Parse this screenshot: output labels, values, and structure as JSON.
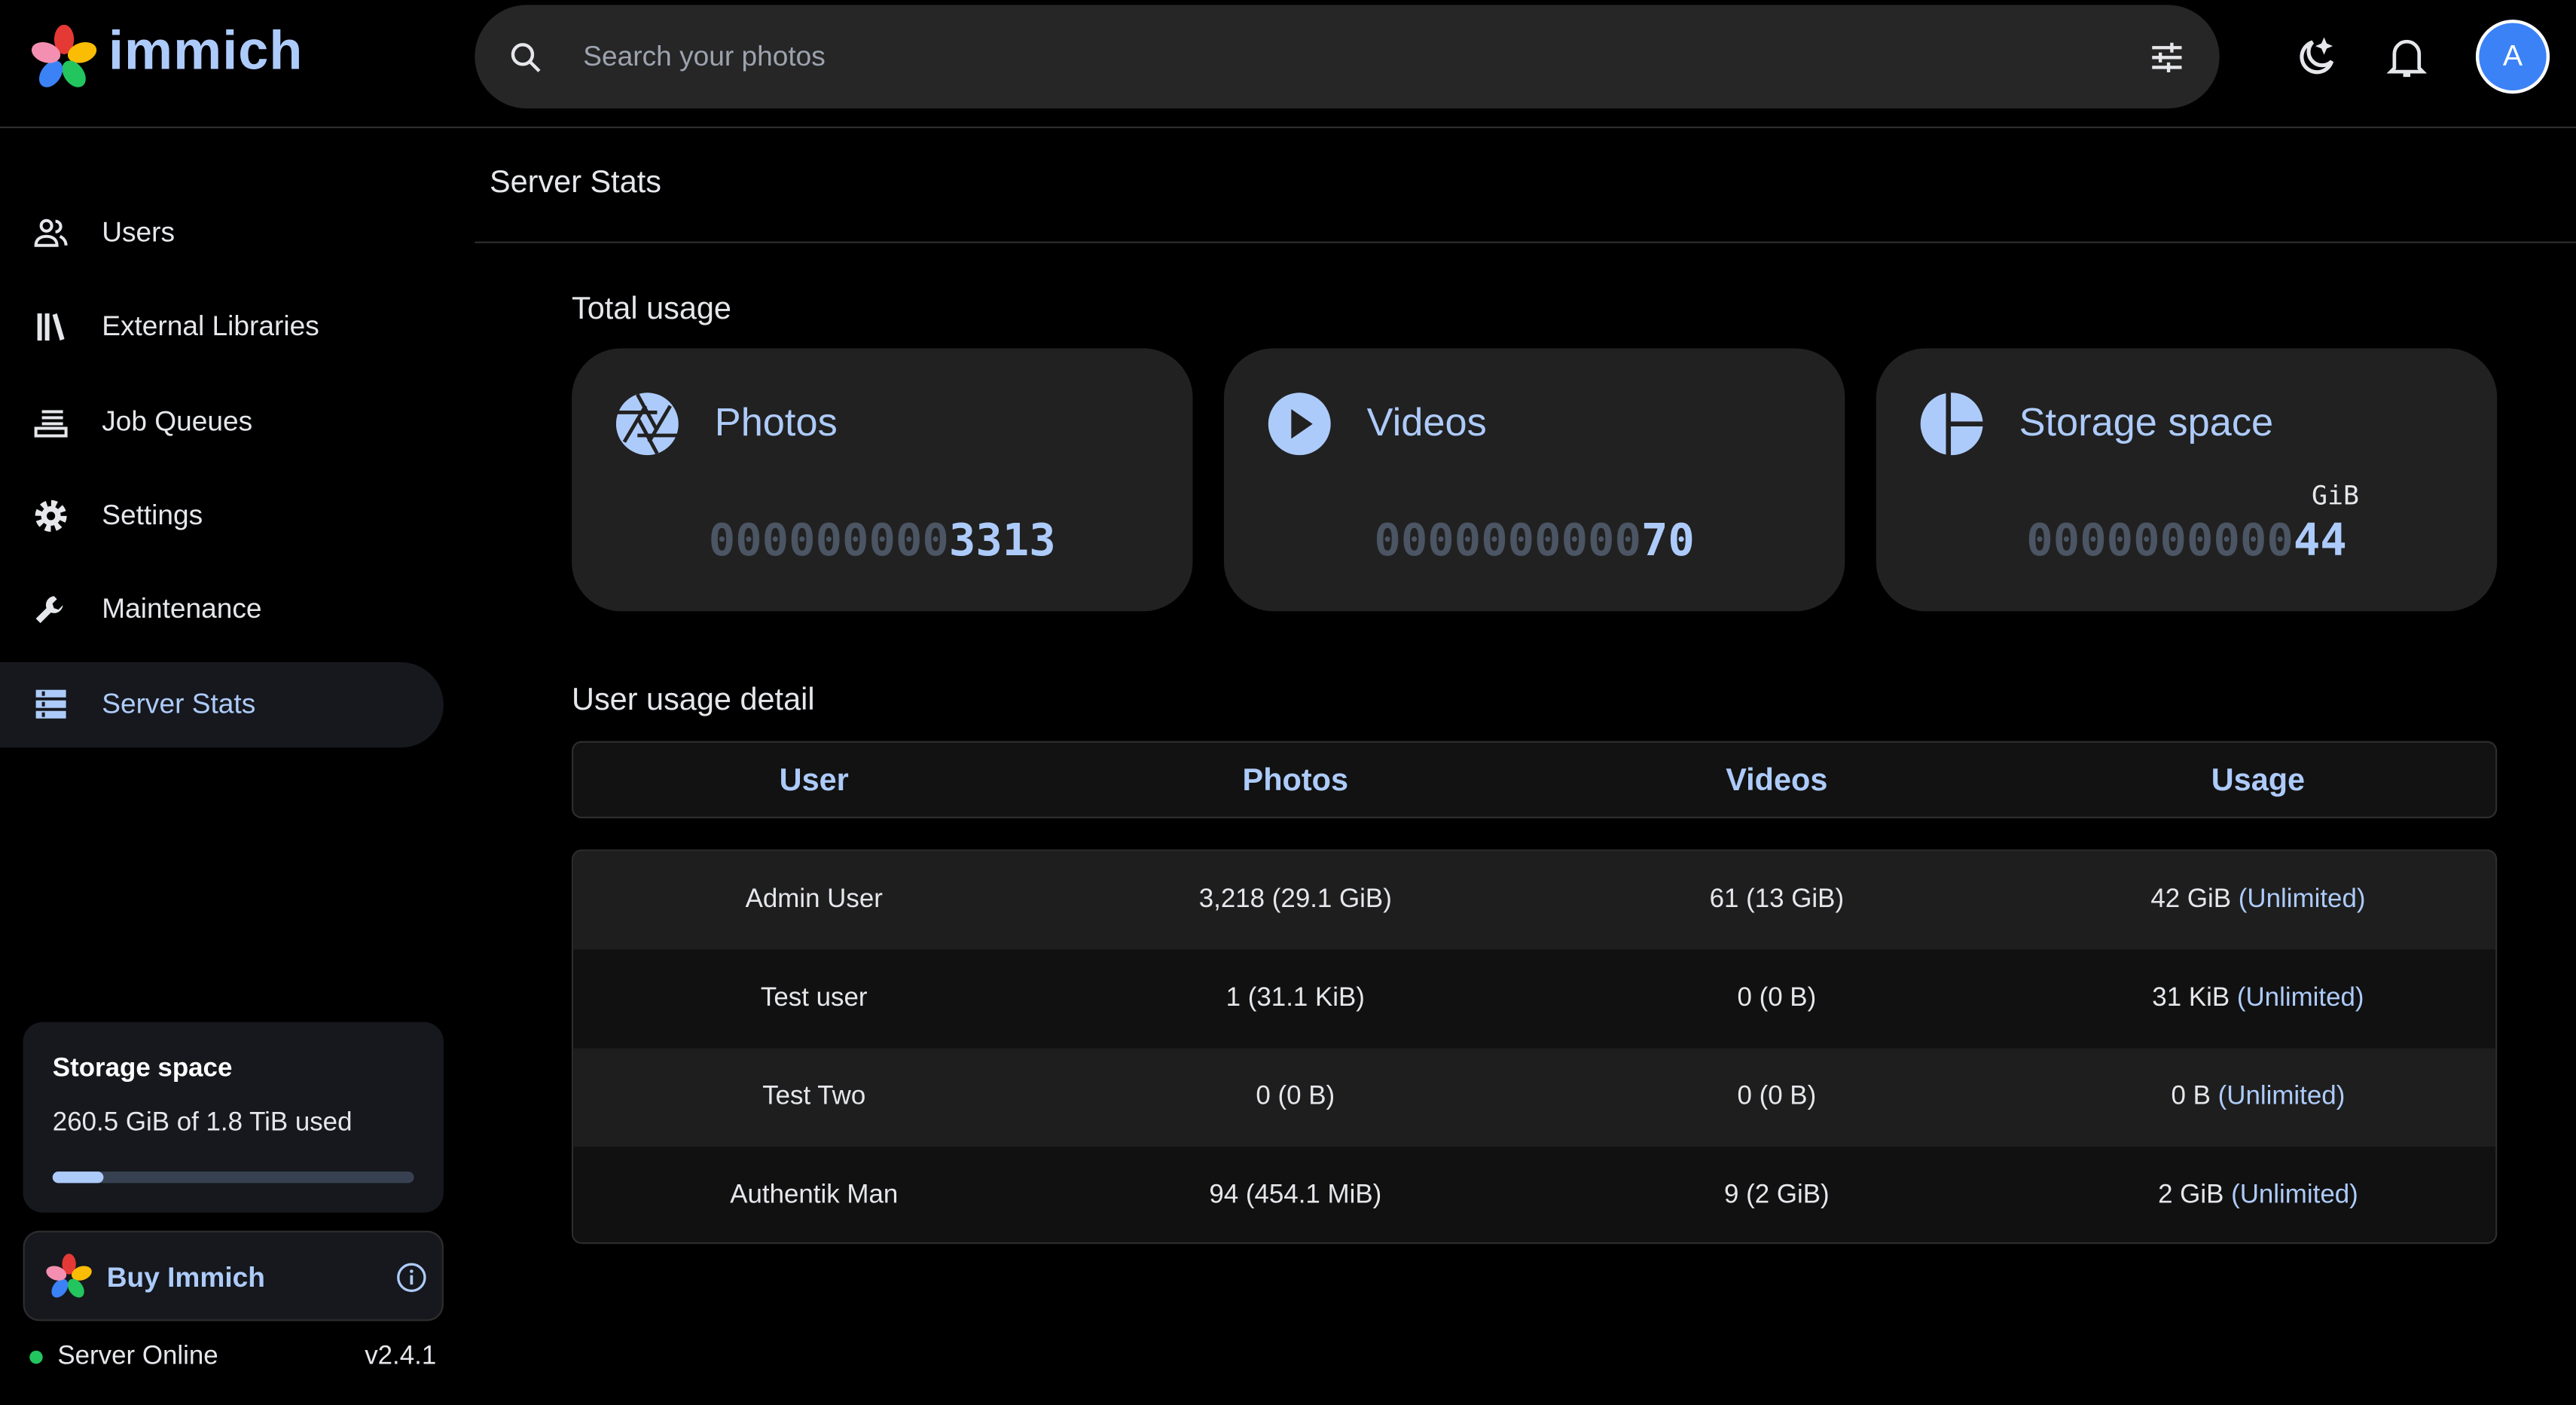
{
  "app": {
    "name": "immich"
  },
  "search": {
    "placeholder": "Search your photos"
  },
  "header": {
    "avatar_initial": "A"
  },
  "sidebar": {
    "items": [
      {
        "label": "Users",
        "icon": "users-icon"
      },
      {
        "label": "External Libraries",
        "icon": "library-icon"
      },
      {
        "label": "Job Queues",
        "icon": "queue-icon"
      },
      {
        "label": "Settings",
        "icon": "gear-icon"
      },
      {
        "label": "Maintenance",
        "icon": "wrench-icon"
      },
      {
        "label": "Server Stats",
        "icon": "server-icon",
        "active": true
      }
    ],
    "storage": {
      "title": "Storage space",
      "text": "260.5 GiB of 1.8 TiB used",
      "used_percent": 14
    },
    "buy_label": "Buy Immich",
    "status": {
      "text": "Server Online",
      "version": "v2.4.1",
      "color": "#22c55e"
    }
  },
  "main": {
    "title": "Server Stats",
    "total_usage_title": "Total usage",
    "cards": [
      {
        "title": "Photos",
        "zeros": "000000000",
        "value": "3313",
        "unit": ""
      },
      {
        "title": "Videos",
        "zeros": "0000000000",
        "value": "70",
        "unit": ""
      },
      {
        "title": "Storage space",
        "zeros": "0000000000",
        "value": "44",
        "unit": "GiB"
      }
    ],
    "user_usage_title": "User usage detail",
    "table": {
      "headers": [
        "User",
        "Photos",
        "Videos",
        "Usage"
      ],
      "rows": [
        {
          "user": "Admin User",
          "photos": "3,218 (29.1 GiB)",
          "videos": "61 (13 GiB)",
          "usage": "42 GiB",
          "quota": "(Unlimited)"
        },
        {
          "user": "Test user",
          "photos": "1 (31.1 KiB)",
          "videos": "0 (0 B)",
          "usage": "31 KiB",
          "quota": "(Unlimited)"
        },
        {
          "user": "Test Two",
          "photos": "0 (0 B)",
          "videos": "0 (0 B)",
          "usage": "0 B",
          "quota": "(Unlimited)"
        },
        {
          "user": "Authentik Man",
          "photos": "94 (454.1 MiB)",
          "videos": "9 (2 GiB)",
          "usage": "2 GiB",
          "quota": "(Unlimited)"
        }
      ]
    }
  },
  "colors": {
    "accent": "#adcbfa",
    "card_bg": "#212121",
    "background": "#000000"
  }
}
